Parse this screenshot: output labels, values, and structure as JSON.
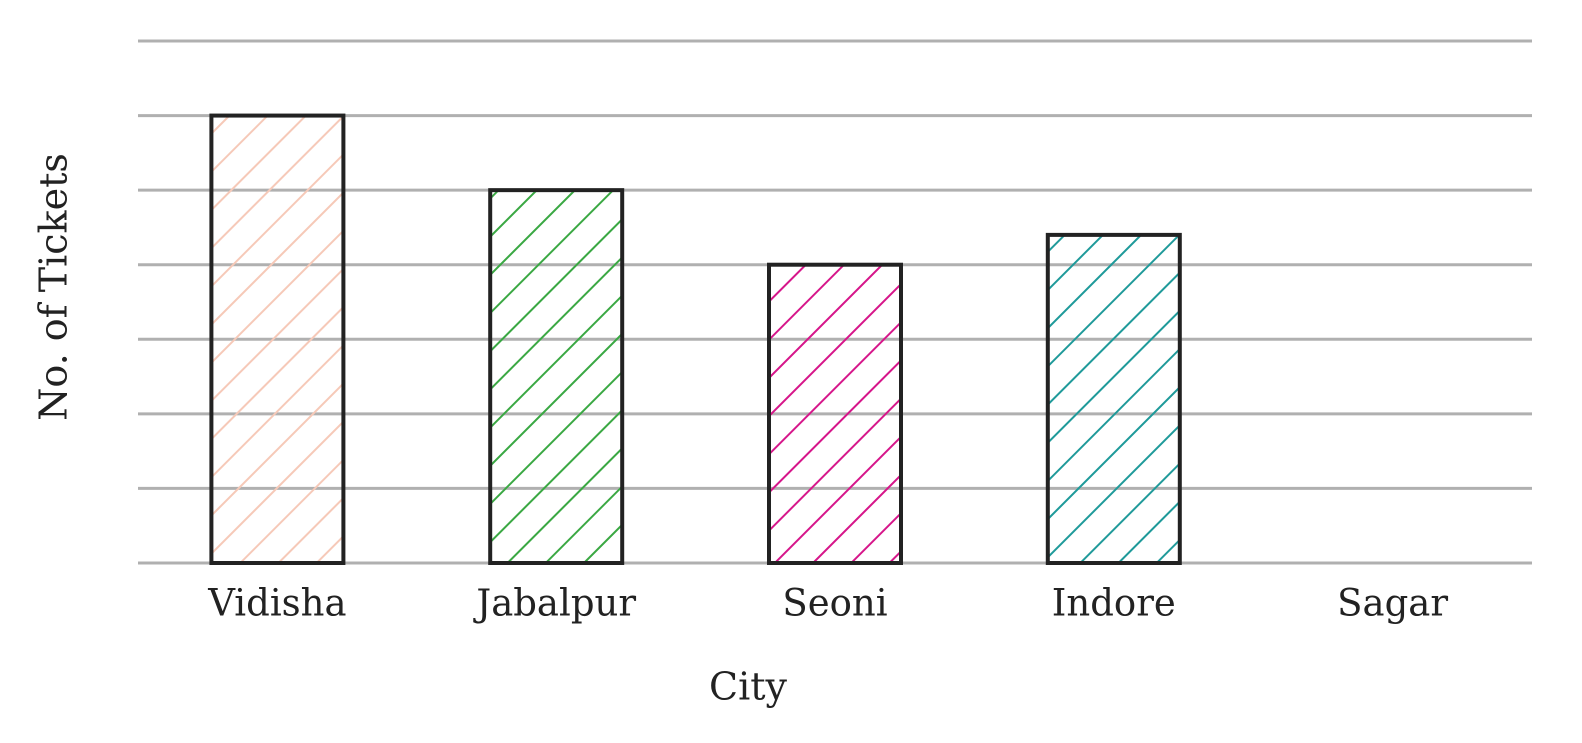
{
  "chart_data": {
    "type": "bar",
    "x_label": "City",
    "y_label": "No. of Tickets",
    "categories": [
      "Vidisha",
      "Jabalpur",
      "Seoni",
      "Indore",
      "Sagar"
    ],
    "values": [
      6,
      5,
      4,
      4.4,
      null
    ],
    "colors": [
      "#f6c9b8",
      "#3aa843",
      "#d6168a",
      "#1f9a9a",
      null
    ],
    "hatch": true,
    "ylim": [
      0,
      7
    ],
    "yticks": [
      0,
      1,
      2,
      3,
      4,
      5,
      6,
      7
    ],
    "y_tick_labels": false,
    "grid": true
  }
}
